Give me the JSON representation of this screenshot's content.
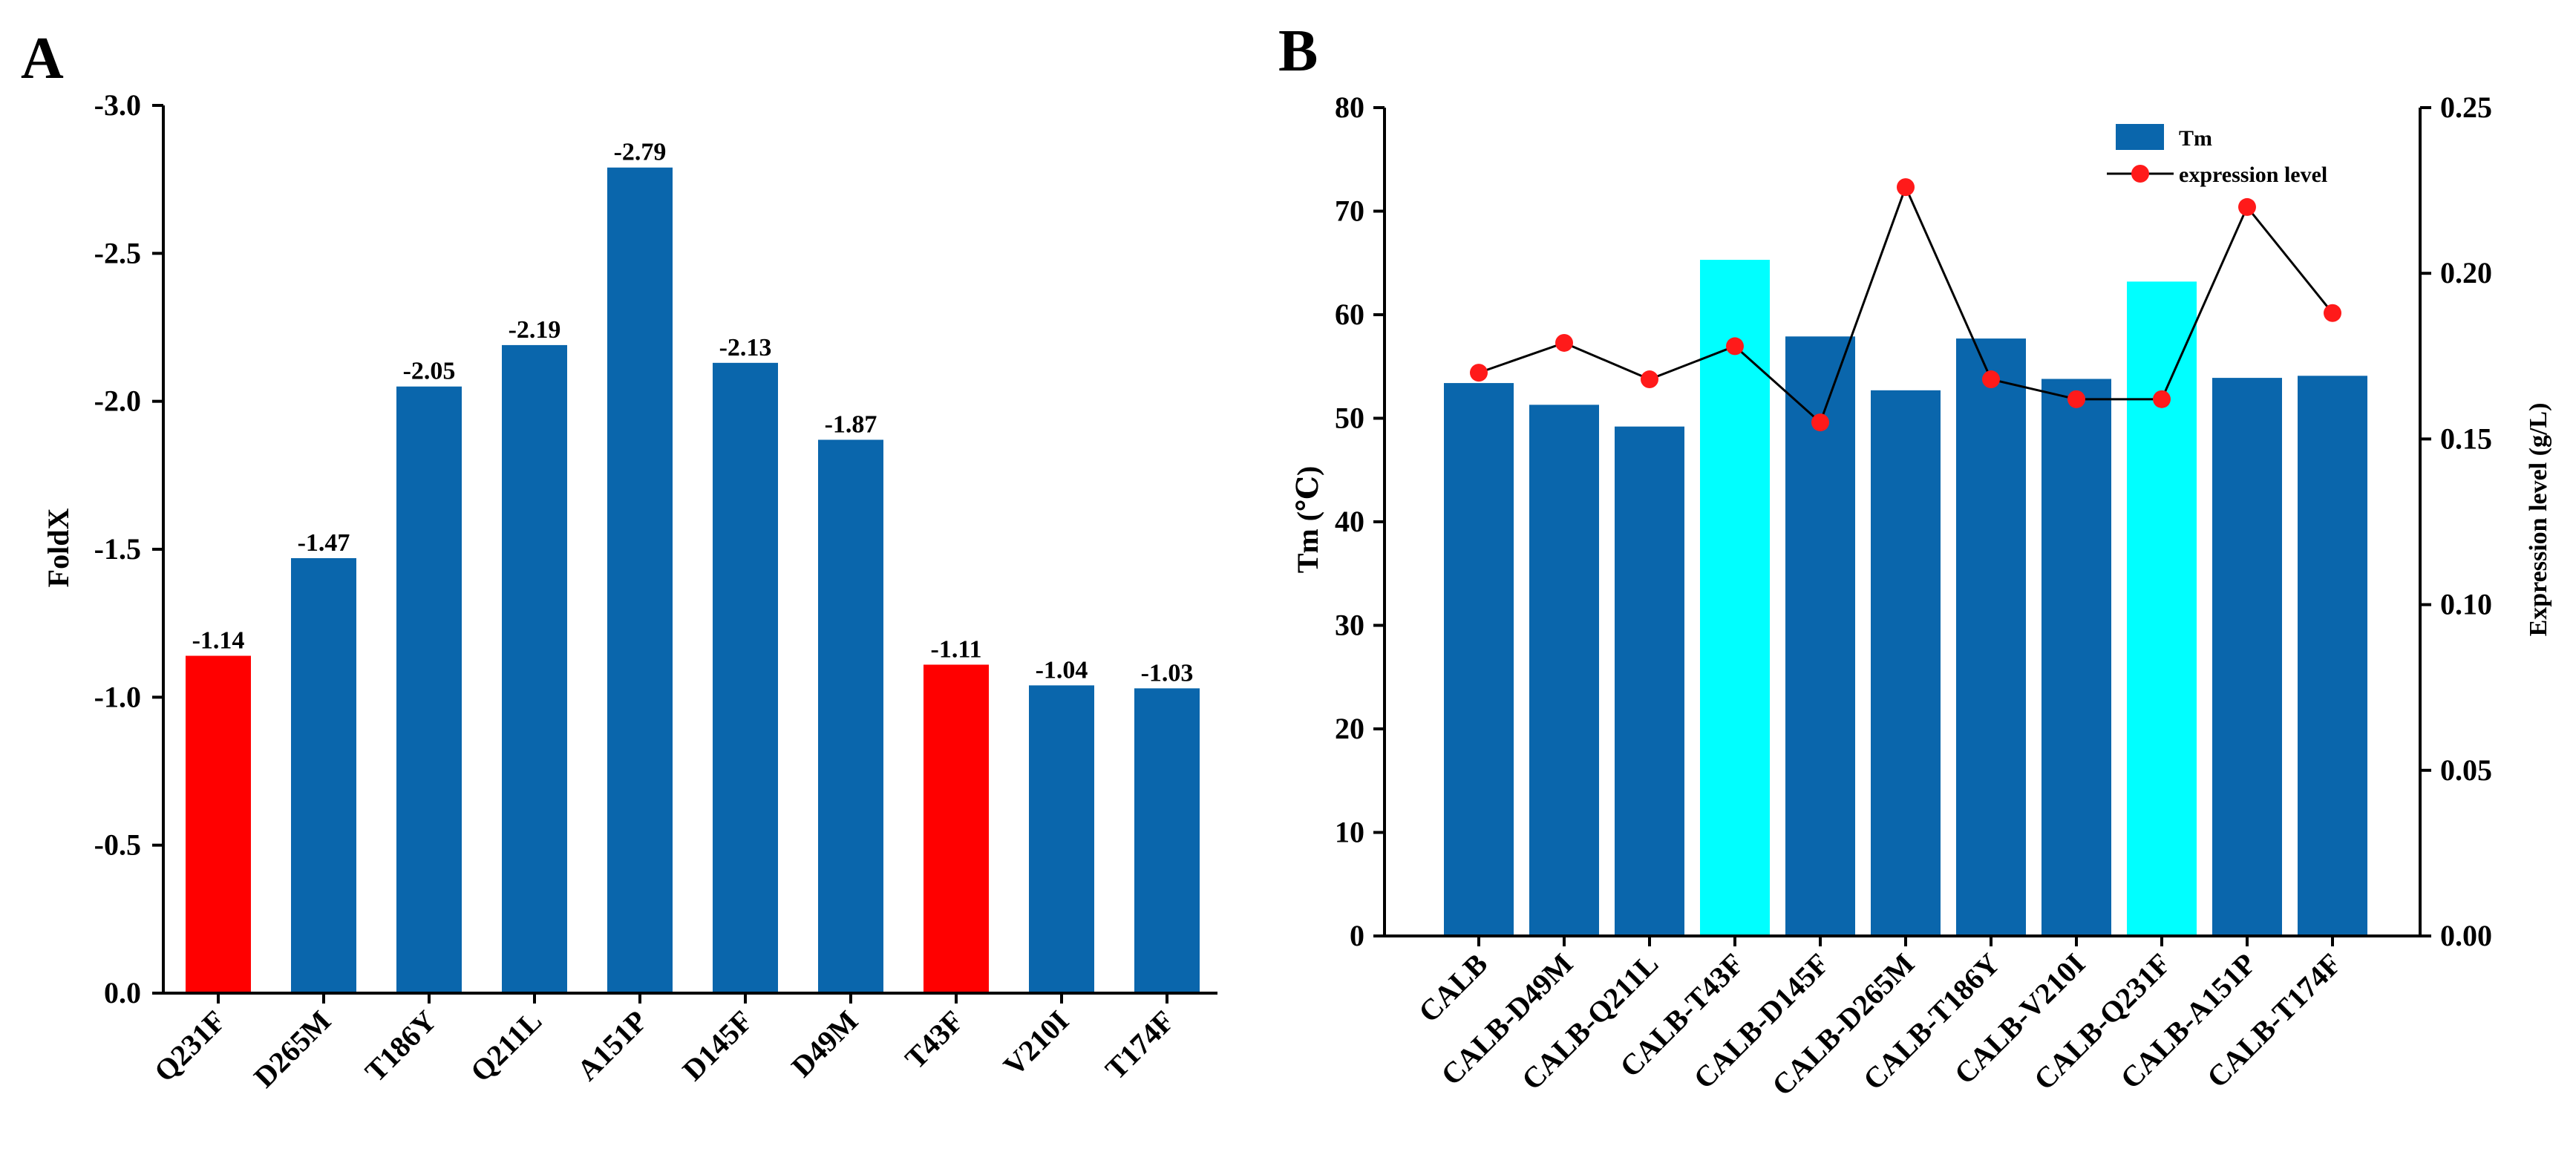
{
  "colors": {
    "bar_default": "#0a66ac",
    "bar_highlight_a": "#ff0000",
    "bar_highlight_b": "#00ffff",
    "expression_marker": "#ff1a1a",
    "expression_line": "#000000"
  },
  "chart_data": [
    {
      "panel": "A",
      "type": "bar",
      "ylabel": "FoldX",
      "ylim": [
        0,
        -3.0
      ],
      "y_axis_direction": "reversed",
      "yticks": [
        "0.0",
        "-0.5",
        "-1.0",
        "-1.5",
        "-2.0",
        "-2.5",
        "-3.0"
      ],
      "ytick_values": [
        0,
        -0.5,
        -1.0,
        -1.5,
        -2.0,
        -2.5,
        -3.0
      ],
      "categories": [
        "Q231F",
        "D265M",
        "T186Y",
        "Q211L",
        "A151P",
        "D145F",
        "D49M",
        "T43F",
        "V210I",
        "T174F"
      ],
      "values": [
        -1.14,
        -1.47,
        -2.05,
        -2.19,
        -2.79,
        -2.13,
        -1.87,
        -1.11,
        -1.04,
        -1.03
      ],
      "value_labels": [
        "-1.14",
        "-1.47",
        "-2.05",
        "-2.19",
        "-2.79",
        "-2.13",
        "-1.87",
        "-1.11",
        "-1.04",
        "-1.03"
      ],
      "highlighted_categories": [
        "Q231F",
        "T43F"
      ],
      "grid": false
    },
    {
      "panel": "B",
      "type": "bar",
      "ylabel": "Tm (℃)",
      "ylabel_right": "Expression level (g/L)",
      "ylim": [
        0,
        80
      ],
      "ylim_right": [
        0,
        0.25
      ],
      "yticks": [
        "0",
        "10",
        "20",
        "30",
        "40",
        "50",
        "60",
        "70",
        "80"
      ],
      "ytick_values": [
        0,
        10,
        20,
        30,
        40,
        50,
        60,
        70,
        80
      ],
      "yticks_right": [
        "0.00",
        "0.05",
        "0.10",
        "0.15",
        "0.20",
        "0.25"
      ],
      "ytick_values_right": [
        0,
        0.05,
        0.1,
        0.15,
        0.2,
        0.25
      ],
      "categories": [
        "CALB",
        "CALB-D49M",
        "CALB-Q211L",
        "CALB-T43F",
        "CALB-D145F",
        "CALB-D265M",
        "CALB-T186Y",
        "CALB-V210I",
        "CALB-Q231F",
        "CALB-A151P",
        "CALB-T174F"
      ],
      "series": [
        {
          "name": "Tm",
          "kind": "bar",
          "axis": "left",
          "values": [
            53.4,
            51.3,
            49.2,
            65.3,
            57.9,
            52.7,
            57.7,
            53.8,
            63.2,
            53.9,
            54.1
          ]
        },
        {
          "name": "expression level",
          "kind": "line-marker",
          "axis": "right",
          "values": [
            0.17,
            0.179,
            0.168,
            0.178,
            0.155,
            0.226,
            0.168,
            0.162,
            0.162,
            0.22,
            0.188
          ]
        }
      ],
      "highlighted_categories": [
        "CALB-T43F",
        "CALB-Q231F"
      ],
      "legend": {
        "position": "top-right",
        "entries": [
          "Tm",
          "expression level"
        ]
      },
      "grid": false
    }
  ]
}
